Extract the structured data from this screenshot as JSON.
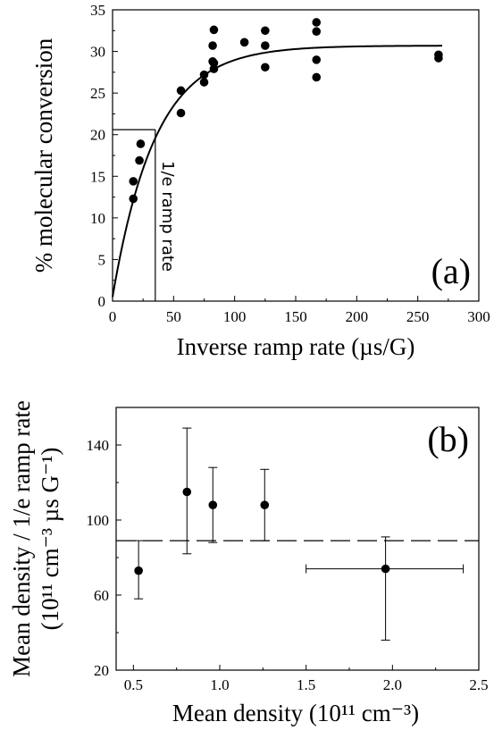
{
  "chart_data": [
    {
      "panel": "(a)",
      "type": "scatter",
      "xlabel": "Inverse ramp rate (µs/G)",
      "ylabel": "% molecular conversion",
      "xlim": [
        0,
        300
      ],
      "ylim": [
        0,
        35
      ],
      "xticks": [
        0,
        50,
        100,
        150,
        200,
        250,
        300
      ],
      "yticks": [
        0,
        5,
        10,
        15,
        20,
        25,
        30,
        35
      ],
      "annotation": "1/e ramp rate",
      "marker_x": 35,
      "marker_y": 20.6,
      "fit": {
        "name": "",
        "type": "saturating-exponential",
        "A": 30.7,
        "tau": 35,
        "x0": 0,
        "y0": 0.5
      },
      "series": [
        {
          "name": "",
          "points": [
            [
              17,
              14.4
            ],
            [
              17,
              12.3
            ],
            [
              22,
              16.9
            ],
            [
              23,
              18.9
            ],
            [
              56,
              25.3
            ],
            [
              56,
              22.6
            ],
            [
              75,
              27.2
            ],
            [
              75,
              26.3
            ],
            [
              83,
              32.6
            ],
            [
              82,
              30.7
            ],
            [
              82,
              28.8
            ],
            [
              83,
              28.6
            ],
            [
              83,
              27.9
            ],
            [
              108,
              31.1
            ],
            [
              125,
              32.5
            ],
            [
              125,
              30.7
            ],
            [
              125,
              28.1
            ],
            [
              167,
              33.5
            ],
            [
              167,
              32.4
            ],
            [
              167,
              29.0
            ],
            [
              167,
              26.9
            ],
            [
              267,
              29.6
            ],
            [
              267,
              29.2
            ]
          ]
        }
      ]
    },
    {
      "panel": "(b)",
      "type": "scatter",
      "xlabel": "Mean density (10¹¹ cm⁻³)",
      "ylabel_line1": "Mean density / 1/e ramp rate",
      "ylabel_line2": "(10¹¹ cm⁻³ µs G⁻¹)",
      "xlim": [
        0.4,
        2.5
      ],
      "ylim": [
        20,
        160
      ],
      "xticks": [
        0.5,
        1.0,
        1.5,
        2.0,
        2.5
      ],
      "xtick_labels": [
        "0.5",
        "1.0",
        "1.5",
        "2.0",
        "2.5"
      ],
      "yticks": [
        20,
        60,
        100,
        140
      ],
      "reference_line_y": 89,
      "series": [
        {
          "name": "",
          "points": [
            {
              "x": 0.53,
              "y": 73,
              "yerr_low": 58,
              "yerr_high": 89
            },
            {
              "x": 0.81,
              "y": 115,
              "yerr_low": 82,
              "yerr_high": 149
            },
            {
              "x": 0.96,
              "y": 108,
              "yerr_low": 88,
              "yerr_high": 128
            },
            {
              "x": 1.26,
              "y": 108,
              "yerr_low": 89,
              "yerr_high": 127
            },
            {
              "x": 1.96,
              "y": 74,
              "yerr_low": 36,
              "yerr_high": 91,
              "xerr_low": 1.5,
              "xerr_high": 2.41
            }
          ]
        }
      ]
    }
  ]
}
